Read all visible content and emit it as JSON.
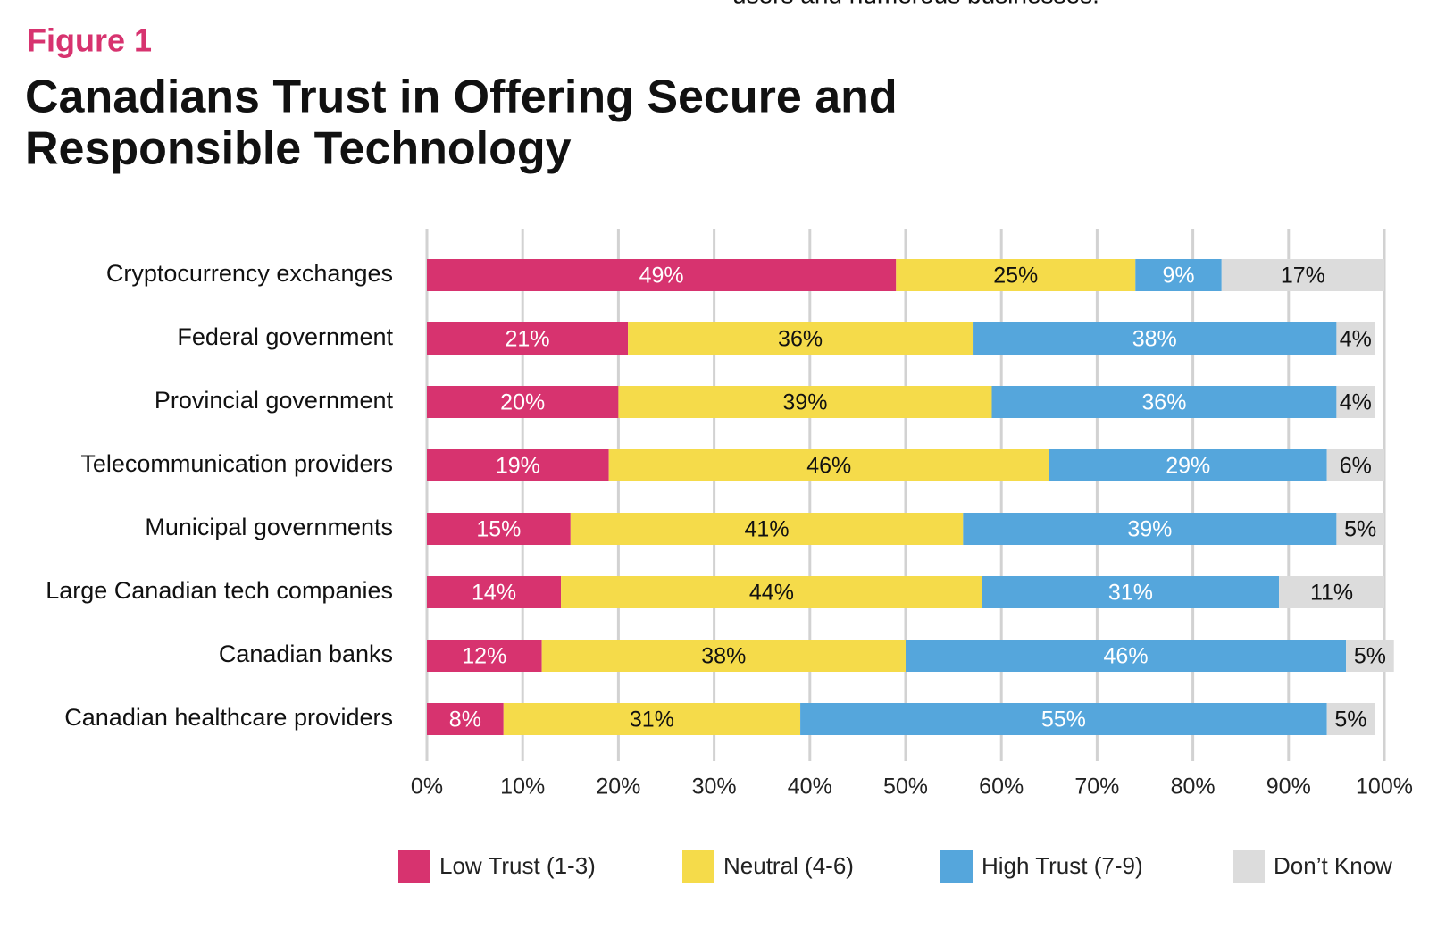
{
  "page_fragment": "users and numerous businesses.",
  "chart_data": {
    "type": "stacked-bar-horizontal",
    "figure_label": "Figure 1",
    "title": [
      "Canadians Trust in Offering Secure and",
      "Responsible Technology"
    ],
    "categories": [
      "Cryptocurrency exchanges",
      "Federal government",
      "Provincial government",
      "Telecommunication providers",
      "Municipal governments",
      "Large Canadian tech companies",
      "Canadian banks",
      "Canadian healthcare providers"
    ],
    "series": [
      {
        "name": "Low Trust (1-3)",
        "color": "#d7336f",
        "label_color": "#ffffff",
        "values": [
          49,
          21,
          20,
          19,
          15,
          14,
          12,
          8
        ],
        "value_labels": [
          "49%",
          "21%",
          "20%",
          "19%",
          "15%",
          "14%",
          "12%",
          "8%"
        ]
      },
      {
        "name": "Neutral (4-6)",
        "color": "#f5db4a",
        "label_color": "#111111",
        "values": [
          25,
          36,
          39,
          46,
          41,
          44,
          38,
          31
        ],
        "value_labels": [
          "25%",
          "36%",
          "39%",
          "46%",
          "41%",
          "44%",
          "38%",
          "31%"
        ]
      },
      {
        "name": "High Trust (7-9)",
        "color": "#55a6dc",
        "label_color": "#ffffff",
        "values": [
          9,
          38,
          36,
          29,
          39,
          31,
          46,
          55
        ],
        "value_labels": [
          "9%",
          "38%",
          "36%",
          "29%",
          "39%",
          "31%",
          "46%",
          "55%"
        ]
      },
      {
        "name": "Don’t Know",
        "color": "#dcdcdc",
        "label_color": "#111111",
        "values": [
          17,
          4,
          4,
          6,
          5,
          11,
          5,
          5
        ],
        "value_labels": [
          "17%",
          "4%",
          "4%",
          "6%",
          "5%",
          "11%",
          "5%",
          "5%"
        ]
      }
    ],
    "xlim": [
      0,
      100
    ],
    "xticks": [
      {
        "value": 0,
        "label": "0%"
      },
      {
        "value": 10,
        "label": "10%"
      },
      {
        "value": 20,
        "label": "20%"
      },
      {
        "value": 30,
        "label": "30%"
      },
      {
        "value": 40,
        "label": "40%"
      },
      {
        "value": 50,
        "label": "50%"
      },
      {
        "value": 60,
        "label": "60%"
      },
      {
        "value": 70,
        "label": "70%"
      },
      {
        "value": 80,
        "label": "80%"
      },
      {
        "value": 90,
        "label": "90%"
      },
      {
        "value": 100,
        "label": "100%"
      }
    ],
    "grid": true
  }
}
